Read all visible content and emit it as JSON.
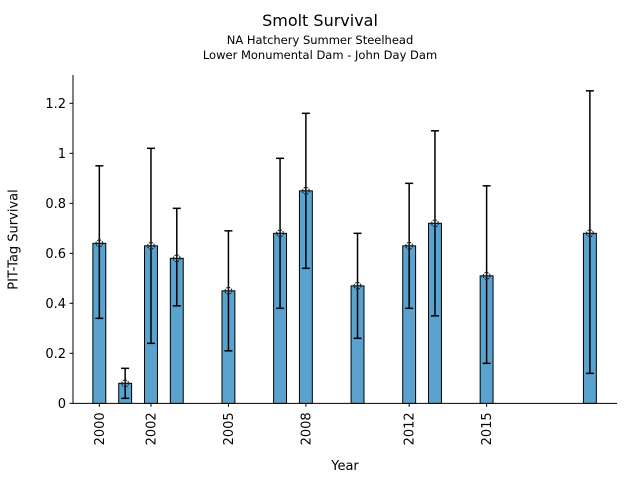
{
  "title": "Smolt Survival",
  "subtitle1": "NA Hatchery Summer Steelhead",
  "subtitle2": "Lower Monumental Dam - John Day Dam",
  "chart_data": {
    "type": "bar",
    "title": "Smolt Survival",
    "subtitle_lines": [
      "NA Hatchery Summer Steelhead",
      "Lower Monumental Dam - John Day Dam"
    ],
    "xlabel": "Year",
    "ylabel": "PIT-Tag Survival",
    "xlim": [
      1998.98,
      2020.05
    ],
    "ylim": [
      0,
      1.3133
    ],
    "x_ticks": [
      2000,
      2002,
      2005,
      2008,
      2012,
      2015
    ],
    "x_tick_labels": [
      "2000",
      "2002",
      "2005",
      "2008",
      "2012",
      "2015"
    ],
    "y_ticks": [
      0,
      0.2,
      0.4,
      0.6,
      0.8,
      1.0,
      1.2
    ],
    "y_tick_labels": [
      "0",
      "0.2",
      "0.4",
      "0.6",
      "0.8",
      "1",
      "1.2"
    ],
    "grid": false,
    "legend": null,
    "bar_width_years": 0.5,
    "colors": {
      "bar_fill": "#5BA3CF",
      "bar_edge": "#000000",
      "error_bar": "#000000",
      "marker_stroke": "#1a1a1a",
      "axis": "#000000",
      "text": "#000000"
    },
    "series": [
      {
        "name": "PIT-Tag Survival",
        "x": [
          2000,
          2001,
          2002,
          2003,
          2005,
          2007,
          2008,
          2010,
          2012,
          2013,
          2015,
          2019
        ],
        "values": [
          0.64,
          0.08,
          0.63,
          0.58,
          0.45,
          0.68,
          0.85,
          0.47,
          0.63,
          0.72,
          0.51,
          0.68
        ],
        "ci_low": [
          0.34,
          0.02,
          0.24,
          0.39,
          0.21,
          0.38,
          0.54,
          0.26,
          0.38,
          0.35,
          0.16,
          0.12
        ],
        "ci_high": [
          0.95,
          0.14,
          1.02,
          0.78,
          0.69,
          0.98,
          1.16,
          0.68,
          0.88,
          1.09,
          0.87,
          1.25
        ]
      }
    ]
  }
}
